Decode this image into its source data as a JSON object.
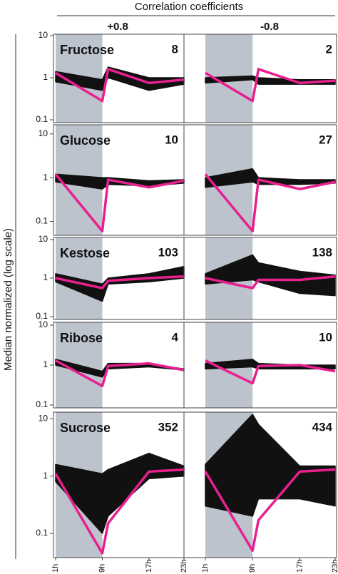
{
  "chart_data": {
    "type": "small-multiples",
    "title": "Correlation coefficients",
    "y_label": "Median normalized (log scale)",
    "log_scale": true,
    "columns": [
      "+0.8",
      "-0.8"
    ],
    "x": [
      1,
      9,
      10,
      17,
      23
    ],
    "xlim": [
      1,
      23
    ],
    "xticks": [
      {
        "value": 1,
        "label": "1h"
      },
      {
        "value": 9,
        "label": "9h"
      },
      {
        "value": 17,
        "label": "17h"
      },
      {
        "value": 23,
        "label": "23h"
      }
    ],
    "shade": [
      1,
      9
    ],
    "colors": {
      "profile": "#e8208f",
      "bundle": "#111111",
      "shade": "#bcc3cc"
    },
    "rows": [
      {
        "label": "Fructose",
        "ylim": [
          0.1,
          10
        ],
        "yticks": [
          10,
          1,
          0.1
        ],
        "panels": [
          {
            "count": 8,
            "values": [
              1.3,
              0.28,
              1.6,
              0.75,
              0.9
            ],
            "low": [
              0.8,
              0.5,
              1.0,
              0.5,
              0.7
            ],
            "high": [
              1.4,
              0.9,
              1.8,
              1.0,
              1.0
            ]
          },
          {
            "count": 2,
            "values": [
              1.3,
              0.28,
              1.6,
              0.75,
              0.85
            ],
            "low": [
              0.75,
              0.9,
              0.7,
              0.7,
              0.7
            ],
            "high": [
              1.0,
              1.1,
              1.0,
              0.9,
              0.9
            ]
          }
        ]
      },
      {
        "label": "Glucose",
        "ylim": [
          0.05,
          15
        ],
        "yticks": [
          10,
          1,
          0.1
        ],
        "panels": [
          {
            "count": 10,
            "values": [
              1.2,
              0.06,
              0.9,
              0.6,
              0.85
            ],
            "low": [
              0.8,
              0.55,
              0.7,
              0.65,
              0.75
            ],
            "high": [
              1.2,
              1.0,
              1.0,
              0.85,
              0.9
            ]
          },
          {
            "count": 27,
            "values": [
              1.2,
              0.06,
              0.9,
              0.55,
              0.8
            ],
            "low": [
              0.6,
              0.8,
              0.7,
              0.7,
              0.75
            ],
            "high": [
              1.0,
              1.6,
              1.0,
              0.9,
              0.9
            ]
          }
        ]
      },
      {
        "label": "Kestose",
        "ylim": [
          0.1,
          10
        ],
        "yticks": [
          10,
          1,
          0.1
        ],
        "panels": [
          {
            "count": 103,
            "values": [
              1.0,
              0.55,
              0.85,
              1.0,
              1.1
            ],
            "low": [
              0.8,
              0.25,
              0.7,
              0.8,
              1.0
            ],
            "high": [
              1.3,
              0.7,
              1.0,
              1.3,
              2.0
            ]
          },
          {
            "count": 138,
            "values": [
              1.0,
              0.55,
              0.9,
              0.9,
              1.1
            ],
            "low": [
              0.7,
              0.9,
              0.8,
              0.4,
              0.35
            ],
            "high": [
              1.3,
              4.0,
              2.5,
              1.5,
              1.2
            ]
          }
        ]
      },
      {
        "label": "Ribose",
        "ylim": [
          0.1,
          10
        ],
        "yticks": [
          10,
          1,
          0.1
        ],
        "panels": [
          {
            "count": 4,
            "values": [
              1.3,
              0.3,
              0.95,
              1.1,
              0.75
            ],
            "low": [
              1.0,
              0.5,
              0.8,
              0.9,
              0.75
            ],
            "high": [
              1.4,
              0.7,
              1.1,
              1.1,
              0.8
            ]
          },
          {
            "count": 10,
            "values": [
              1.3,
              0.35,
              0.95,
              1.0,
              0.7
            ],
            "low": [
              0.8,
              0.9,
              0.8,
              0.8,
              0.8
            ],
            "high": [
              1.1,
              1.4,
              1.1,
              1.0,
              1.0
            ]
          }
        ]
      },
      {
        "label": "Sucrose",
        "ylim": [
          0.04,
          12
        ],
        "yticks": [
          10,
          1,
          0.1
        ],
        "panels": [
          {
            "count": 352,
            "values": [
              1.1,
              0.045,
              0.15,
              1.2,
              1.3
            ],
            "low": [
              0.8,
              0.1,
              0.2,
              0.9,
              1.0
            ],
            "high": [
              1.6,
              1.1,
              1.3,
              2.5,
              1.5
            ]
          },
          {
            "count": 434,
            "values": [
              1.2,
              0.05,
              0.17,
              1.2,
              1.3
            ],
            "low": [
              0.3,
              0.2,
              0.4,
              0.4,
              0.3
            ],
            "high": [
              1.6,
              12,
              8,
              1.5,
              1.5
            ]
          }
        ]
      }
    ]
  }
}
